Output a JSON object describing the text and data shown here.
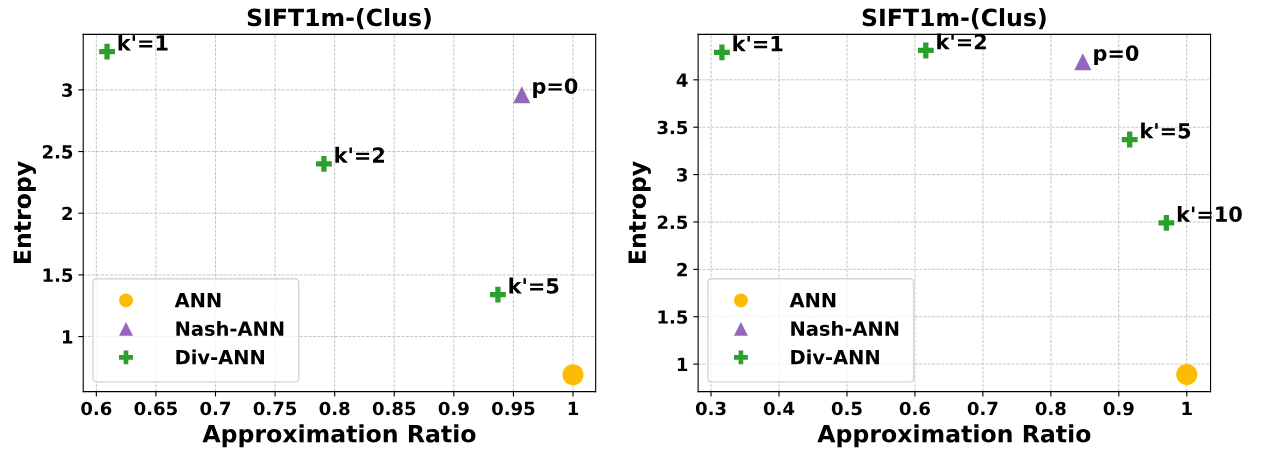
{
  "chart_data": [
    {
      "type": "scatter",
      "title": "SIFT1m-(Clus)",
      "xlabel": "Approximation Ratio",
      "ylabel": "Entropy",
      "xlim": [
        0.589,
        1.019
      ],
      "ylim": [
        0.554,
        3.45
      ],
      "xticks": [
        0.6,
        0.65,
        0.7,
        0.75,
        0.8,
        0.85,
        0.9,
        0.95,
        1
      ],
      "yticks": [
        1,
        1.5,
        2,
        2.5,
        3
      ],
      "grid": true,
      "legend": "bottom left",
      "series": [
        {
          "name": "ANN",
          "color": "#fbbc05",
          "marker": "circle",
          "x": [
            1.0
          ],
          "values": [
            0.69
          ]
        },
        {
          "name": "Nash-ANN",
          "color": "#9467bd",
          "marker": "triangle",
          "x": [
            0.957
          ],
          "values": [
            2.96
          ]
        },
        {
          "name": "Div-ANN",
          "color": "#2ca02c",
          "marker": "cross",
          "x": [
            0.609,
            0.791,
            0.937
          ],
          "values": [
            3.31,
            2.4,
            1.34
          ]
        }
      ],
      "annotations": [
        {
          "text": "k'=1",
          "x": 0.609,
          "y": 3.31
        },
        {
          "text": "k'=2",
          "x": 0.791,
          "y": 2.4
        },
        {
          "text": "k'=5",
          "x": 0.937,
          "y": 1.34
        },
        {
          "text": "p=0",
          "x": 0.957,
          "y": 2.96
        }
      ]
    },
    {
      "type": "scatter",
      "title": "SIFT1m-(Clus)",
      "xlabel": "Approximation Ratio",
      "ylabel": "Entropy",
      "xlim": [
        0.281,
        1.035
      ],
      "ylim": [
        0.71,
        4.48
      ],
      "xticks": [
        0.3,
        0.4,
        0.5,
        0.6,
        0.7,
        0.8,
        0.9,
        1
      ],
      "yticks": [
        1,
        1.5,
        2,
        2.5,
        3,
        3.5,
        4
      ],
      "grid": true,
      "legend": "bottom left",
      "series": [
        {
          "name": "ANN",
          "color": "#fbbc05",
          "marker": "circle",
          "x": [
            1.0
          ],
          "values": [
            0.89
          ]
        },
        {
          "name": "Nash-ANN",
          "color": "#9467bd",
          "marker": "triangle",
          "x": [
            0.847
          ],
          "values": [
            4.19
          ]
        },
        {
          "name": "Div-ANN",
          "color": "#2ca02c",
          "marker": "cross",
          "x": [
            0.316,
            0.616,
            0.916,
            0.97
          ],
          "values": [
            4.29,
            4.31,
            3.37,
            2.49
          ]
        }
      ],
      "annotations": [
        {
          "text": "k'=1",
          "x": 0.316,
          "y": 4.29
        },
        {
          "text": "k'=2",
          "x": 0.616,
          "y": 4.31
        },
        {
          "text": "p=0",
          "x": 0.847,
          "y": 4.19
        },
        {
          "text": "k'=5",
          "x": 0.916,
          "y": 3.37
        },
        {
          "text": "k'=10",
          "x": 0.97,
          "y": 2.49
        }
      ]
    }
  ]
}
